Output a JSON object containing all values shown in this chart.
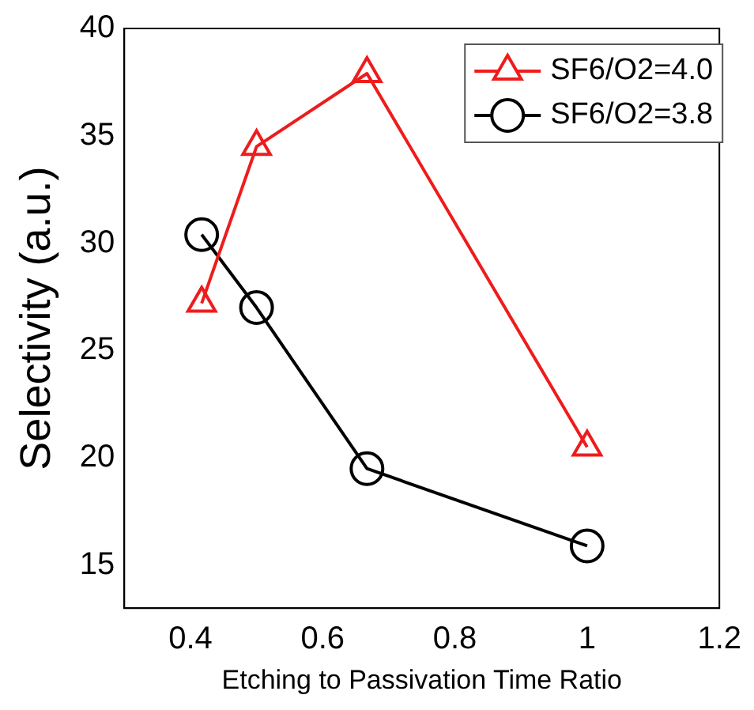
{
  "chart_data": {
    "type": "line",
    "xlabel": "Etching to Passivation Time Ratio",
    "ylabel": "Selectivity (a.u.)",
    "xlim": [
      0.3,
      1.2
    ],
    "xticks": [
      0.4,
      0.6,
      0.8,
      1,
      1.2
    ],
    "ylim": [
      13,
      40
    ],
    "yticks": [
      15,
      20,
      25,
      30,
      35,
      40
    ],
    "grid": false,
    "legend": "top right",
    "line_style": "solid",
    "series": [
      {
        "name": "SF6/O2=4.0",
        "color": "#ee1c1c",
        "marker": "triangle",
        "x": [
          0.417,
          0.5,
          0.667,
          1
        ],
        "values": [
          27.2,
          34.5,
          37.9,
          20.5
        ]
      },
      {
        "name": "SF6/O2=3.8",
        "color": "#000000",
        "marker": "circle",
        "x": [
          0.417,
          0.5,
          0.667,
          1
        ],
        "values": [
          30.4,
          27.0,
          19.5,
          15.9
        ]
      }
    ]
  }
}
